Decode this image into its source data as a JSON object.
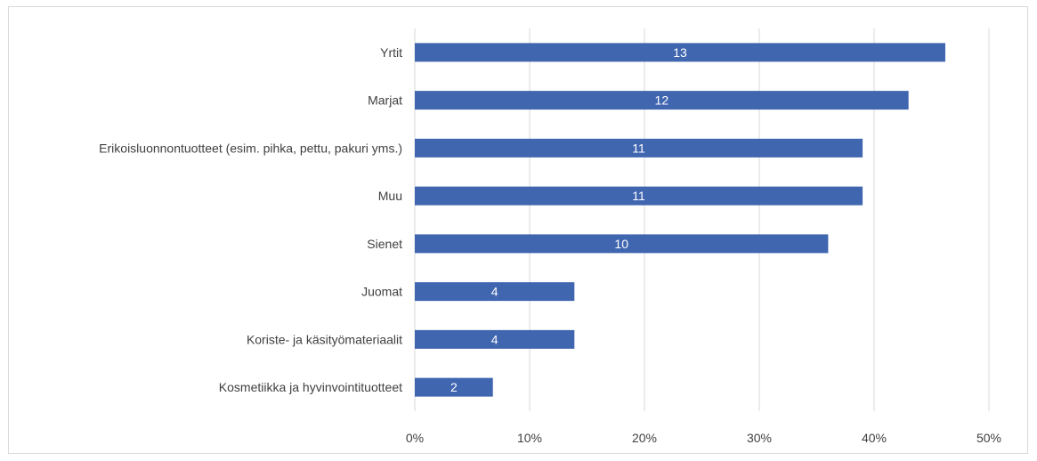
{
  "chart_data": {
    "type": "bar",
    "orientation": "horizontal",
    "title": "",
    "xlabel": "",
    "ylabel": "",
    "categories": [
      "Yrtit",
      "Marjat",
      "Erikoisluonnontuotteet (esim. pihka, pettu, pakuri yms.)",
      "Muu",
      "Sienet",
      "Juomat",
      "Koriste- ja käsityömateriaalit",
      "Kosmetiikka ja hyvinvointituotteet"
    ],
    "values": [
      46.2,
      43.0,
      39.0,
      39.0,
      36.0,
      13.9,
      13.9,
      6.8
    ],
    "data_labels": [
      "13",
      "12",
      "11",
      "11",
      "10",
      "4",
      "4",
      "2"
    ],
    "xlim": [
      0,
      50
    ],
    "x_ticks": [
      "0%",
      "10%",
      "20%",
      "30%",
      "40%",
      "50%"
    ],
    "grid": true,
    "legend": "none",
    "colors": {
      "bar": "#4066B0",
      "grid": "#d9d9d9",
      "text": "#404040",
      "data_label": "#ffffff"
    }
  }
}
